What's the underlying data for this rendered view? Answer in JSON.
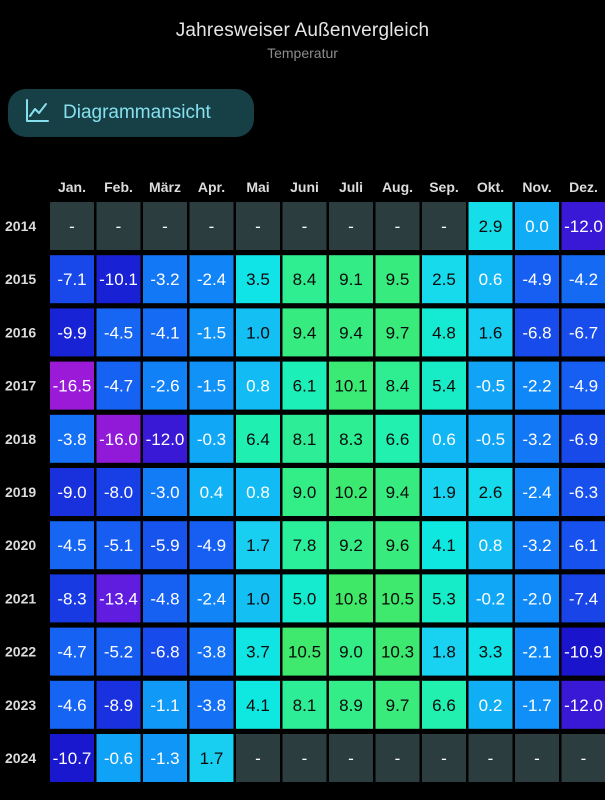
{
  "header": {
    "title": "Jahresweiser Außenvergleich",
    "subtitle": "Temperatur"
  },
  "view_button": {
    "label": "Diagrammansicht",
    "icon": "line-chart-icon"
  },
  "colors": {
    "background": "#000000",
    "empty_cell": "#2b3d3e",
    "button_bg": "#163f46",
    "button_text": "#86e0ee"
  },
  "chart_data": {
    "type": "heatmap",
    "missing_label": "-",
    "categories": [
      "Jan.",
      "Feb.",
      "März",
      "Apr.",
      "Mai",
      "Juni",
      "Juli",
      "Aug.",
      "Sep.",
      "Okt.",
      "Nov.",
      "Dez."
    ],
    "years": [
      "2014",
      "2015",
      "2016",
      "2017",
      "2018",
      "2019",
      "2020",
      "2021",
      "2022",
      "2023",
      "2024"
    ],
    "labels": [
      [
        "-",
        "-",
        "-",
        "-",
        "-",
        "-",
        "-",
        "-",
        "-",
        "2.9",
        "0.0",
        "-12.0"
      ],
      [
        "-7.1",
        "-10.1",
        "-3.2",
        "-2.4",
        "3.5",
        "8.4",
        "9.1",
        "9.5",
        "2.5",
        "0.6",
        "-4.9",
        "-4.2"
      ],
      [
        "-9.9",
        "-4.5",
        "-4.1",
        "-1.5",
        "1.0",
        "9.4",
        "9.4",
        "9.7",
        "4.8",
        "1.6",
        "-6.8",
        "-6.7"
      ],
      [
        "-16.5",
        "-4.7",
        "-2.6",
        "-1.5",
        "0.8",
        "6.1",
        "10.1",
        "8.4",
        "5.4",
        "-0.5",
        "-2.2",
        "-4.9"
      ],
      [
        "-3.8",
        "-16.0",
        "-12.0",
        "-0.3",
        "6.4",
        "8.1",
        "8.3",
        "6.6",
        "0.6",
        "-0.5",
        "-3.2",
        "-6.9"
      ],
      [
        "-9.0",
        "-8.0",
        "-3.0",
        "0.4",
        "0.8",
        "9.0",
        "10.2",
        "9.4",
        "1.9",
        "2.6",
        "-2.4",
        "-6.3"
      ],
      [
        "-4.5",
        "-5.1",
        "-5.9",
        "-4.9",
        "1.7",
        "7.8",
        "9.2",
        "9.6",
        "4.1",
        "0.8",
        "-3.2",
        "-6.1"
      ],
      [
        "-8.3",
        "-13.4",
        "-4.8",
        "-2.4",
        "1.0",
        "5.0",
        "10.8",
        "10.5",
        "5.3",
        "-0.2",
        "-2.0",
        "-7.4"
      ],
      [
        "-4.7",
        "-5.2",
        "-6.8",
        "-3.8",
        "3.7",
        "10.5",
        "9.0",
        "10.3",
        "1.8",
        "3.3",
        "-2.1",
        "-10.9"
      ],
      [
        "-4.6",
        "-8.9",
        "-1.1",
        "-3.8",
        "4.1",
        "8.1",
        "8.9",
        "9.7",
        "6.6",
        "0.2",
        "-1.7",
        "-12.0"
      ],
      [
        "-10.7",
        "-0.6",
        "-1.3",
        "1.7",
        "-",
        "-",
        "-",
        "-",
        "-",
        "-",
        "-",
        "-"
      ]
    ]
  }
}
